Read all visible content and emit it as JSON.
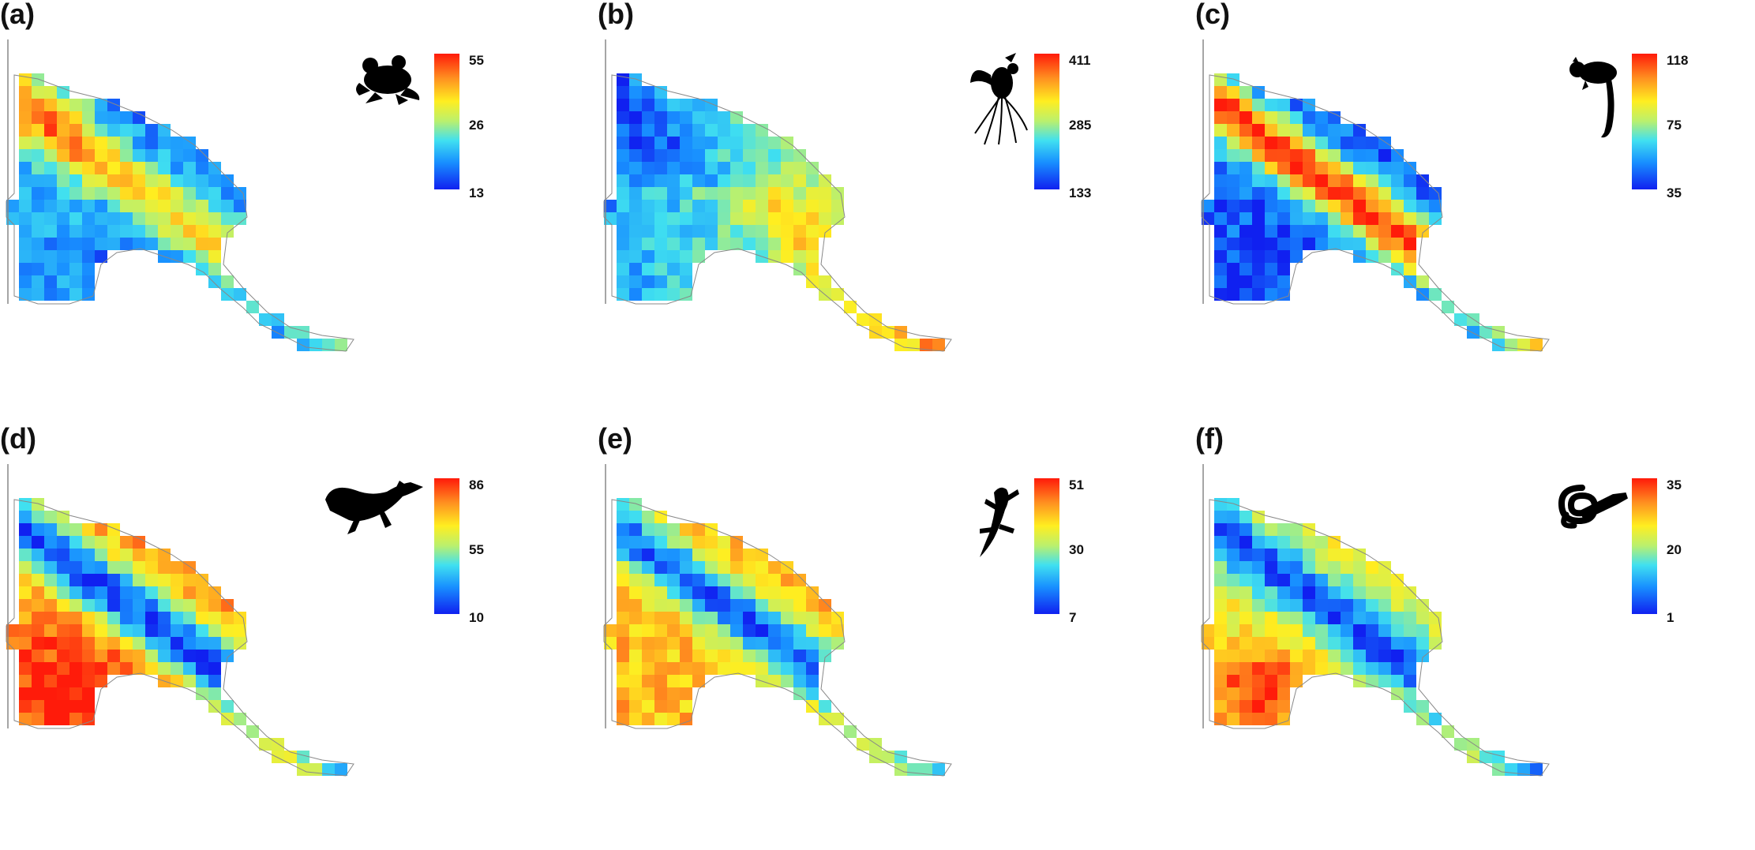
{
  "panels": [
    {
      "label": "(a)",
      "icon": "frog-icon",
      "max": "55",
      "mid": "26",
      "min": "13"
    },
    {
      "label": "(b)",
      "icon": "bird-of-paradise-icon",
      "max": "411",
      "mid": "285",
      "min": "133"
    },
    {
      "label": "(c)",
      "icon": "possum-icon",
      "max": "118",
      "mid": "75",
      "min": "35"
    },
    {
      "label": "(d)",
      "icon": "monitor-lizard-icon",
      "max": "86",
      "mid": "55",
      "min": "10"
    },
    {
      "label": "(e)",
      "icon": "gecko-icon",
      "max": "51",
      "mid": "30",
      "min": "7"
    },
    {
      "label": "(f)",
      "icon": "snake-icon",
      "max": "35",
      "mid": "20",
      "min": "1"
    }
  ],
  "colormap": [
    "#1020f0",
    "#1890ff",
    "#40e0f0",
    "#b8f070",
    "#ffee20",
    "#ff9020",
    "#ff1a0a"
  ]
}
